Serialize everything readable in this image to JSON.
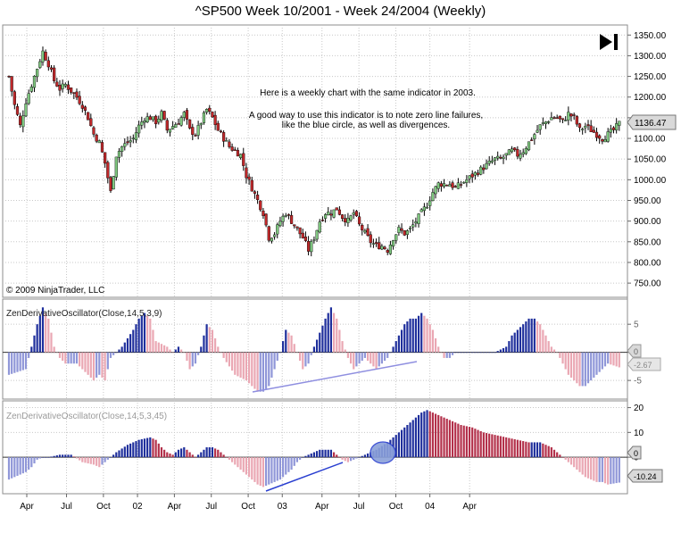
{
  "window": {
    "title": "^SP500  Week 10/2001 - Week 24/2004 (Weekly)"
  },
  "copyright": "© 2009 NinjaTrader, LLC",
  "annotation": {
    "line1": "Here is a weekly chart with the same indicator in 2003.",
    "line2": "A good way to use this indicator is to note zero line failures,",
    "line3": "like the blue circle, as well as divergences."
  },
  "colors": {
    "up_candle": "#7fc77f",
    "down_candle": "#c0282a",
    "wick": "#000000",
    "pos_strong": "#1f2f9c",
    "pos_weak": "#8f96d8",
    "neg_strong": "#b3304a",
    "neg_weak": "#eaa7b3",
    "circle_fill": "#8aa0d9",
    "trend_line": "#2a3fd0",
    "grid": "#c8c8c8"
  },
  "chart_data": [
    {
      "type": "candlestick",
      "panel": "price",
      "ylim": [
        720,
        1370
      ],
      "y_ticks": [
        "1350.00",
        "1300.00",
        "1250.00",
        "1200.00",
        "1150.00",
        "1100.00",
        "1050.00",
        "1000.00",
        "950.00",
        "900.00",
        "850.00",
        "800.00",
        "750.00"
      ],
      "last_value_label": "1136.47",
      "last_value": 1136.47,
      "close_path": [
        [
          0,
          1250
        ],
        [
          2,
          1180
        ],
        [
          4,
          1130
        ],
        [
          6,
          1190
        ],
        [
          8,
          1230
        ],
        [
          10,
          1270
        ],
        [
          12,
          1310
        ],
        [
          14,
          1280
        ],
        [
          16,
          1240
        ],
        [
          18,
          1220
        ],
        [
          20,
          1230
        ],
        [
          22,
          1215
        ],
        [
          24,
          1200
        ],
        [
          26,
          1180
        ],
        [
          28,
          1150
        ],
        [
          30,
          1110
        ],
        [
          32,
          1090
        ],
        [
          34,
          1040
        ],
        [
          36,
          970
        ],
        [
          38,
          1060
        ],
        [
          40,
          1080
        ],
        [
          42,
          1090
        ],
        [
          44,
          1100
        ],
        [
          46,
          1130
        ],
        [
          48,
          1150
        ],
        [
          50,
          1150
        ],
        [
          52,
          1140
        ],
        [
          54,
          1160
        ],
        [
          56,
          1120
        ],
        [
          58,
          1130
        ],
        [
          60,
          1140
        ],
        [
          62,
          1160
        ],
        [
          64,
          1120
        ],
        [
          66,
          1110
        ],
        [
          68,
          1140
        ],
        [
          70,
          1170
        ],
        [
          72,
          1150
        ],
        [
          74,
          1120
        ],
        [
          76,
          1100
        ],
        [
          78,
          1080
        ],
        [
          80,
          1070
        ],
        [
          82,
          1060
        ],
        [
          84,
          1010
        ],
        [
          86,
          980
        ],
        [
          88,
          950
        ],
        [
          90,
          920
        ],
        [
          92,
          860
        ],
        [
          94,
          870
        ],
        [
          96,
          900
        ],
        [
          98,
          920
        ],
        [
          100,
          900
        ],
        [
          102,
          880
        ],
        [
          104,
          860
        ],
        [
          106,
          830
        ],
        [
          108,
          860
        ],
        [
          110,
          900
        ],
        [
          112,
          920
        ],
        [
          114,
          920
        ],
        [
          116,
          930
        ],
        [
          118,
          910
        ],
        [
          120,
          900
        ],
        [
          122,
          920
        ],
        [
          124,
          890
        ],
        [
          126,
          870
        ],
        [
          128,
          850
        ],
        [
          130,
          840
        ],
        [
          132,
          840
        ],
        [
          134,
          830
        ],
        [
          136,
          860
        ],
        [
          138,
          880
        ],
        [
          140,
          870
        ],
        [
          142,
          880
        ],
        [
          144,
          900
        ],
        [
          146,
          920
        ],
        [
          148,
          940
        ],
        [
          150,
          970
        ],
        [
          152,
          990
        ],
        [
          154,
          990
        ],
        [
          156,
          990
        ],
        [
          158,
          980
        ],
        [
          160,
          990
        ],
        [
          162,
          1000
        ],
        [
          164,
          1010
        ],
        [
          166,
          1020
        ],
        [
          168,
          1030
        ],
        [
          170,
          1040
        ],
        [
          172,
          1050
        ],
        [
          174,
          1050
        ],
        [
          176,
          1060
        ],
        [
          178,
          1070
        ],
        [
          180,
          1060
        ],
        [
          182,
          1070
        ],
        [
          184,
          1090
        ],
        [
          186,
          1110
        ],
        [
          188,
          1130
        ],
        [
          190,
          1140
        ],
        [
          192,
          1150
        ],
        [
          194,
          1150
        ],
        [
          196,
          1140
        ],
        [
          198,
          1160
        ],
        [
          200,
          1150
        ],
        [
          202,
          1120
        ],
        [
          204,
          1130
        ],
        [
          206,
          1120
        ],
        [
          208,
          1110
        ],
        [
          210,
          1100
        ],
        [
          212,
          1110
        ],
        [
          214,
          1120
        ],
        [
          216,
          1136
        ]
      ]
    },
    {
      "type": "bar",
      "panel": "oscillator_1",
      "title": "ZenDerivativeOscillator(Close,14,5,3,9)",
      "ylim": [
        -8,
        9
      ],
      "y_ticks": [
        "5",
        "0",
        "-5"
      ],
      "zero_label": "0",
      "last_value_label": "-2.67",
      "last_value": -2.67,
      "series_path": [
        [
          0,
          -4
        ],
        [
          6,
          -3
        ],
        [
          8,
          1
        ],
        [
          10,
          5
        ],
        [
          12,
          8
        ],
        [
          14,
          6
        ],
        [
          16,
          1
        ],
        [
          18,
          -1
        ],
        [
          20,
          -2
        ],
        [
          24,
          -2
        ],
        [
          28,
          -4
        ],
        [
          30,
          -5
        ],
        [
          32,
          -4
        ],
        [
          34,
          -5
        ],
        [
          36,
          -1
        ],
        [
          38,
          0
        ],
        [
          40,
          1
        ],
        [
          44,
          4
        ],
        [
          46,
          6
        ],
        [
          48,
          7
        ],
        [
          50,
          6
        ],
        [
          52,
          2
        ],
        [
          56,
          1
        ],
        [
          58,
          0
        ],
        [
          60,
          1
        ],
        [
          62,
          0
        ],
        [
          64,
          -3
        ],
        [
          66,
          -2
        ],
        [
          68,
          1
        ],
        [
          70,
          5
        ],
        [
          72,
          4
        ],
        [
          74,
          1
        ],
        [
          76,
          -1
        ],
        [
          80,
          -4
        ],
        [
          84,
          -5
        ],
        [
          86,
          -6
        ],
        [
          88,
          -7
        ],
        [
          90,
          -7
        ],
        [
          92,
          -6
        ],
        [
          94,
          -3
        ],
        [
          96,
          0
        ],
        [
          98,
          4
        ],
        [
          100,
          3
        ],
        [
          102,
          0
        ],
        [
          104,
          -3
        ],
        [
          106,
          -2
        ],
        [
          108,
          1
        ],
        [
          112,
          6
        ],
        [
          114,
          8
        ],
        [
          116,
          6
        ],
        [
          118,
          2
        ],
        [
          120,
          -1
        ],
        [
          122,
          -3
        ],
        [
          124,
          -2
        ],
        [
          126,
          -1
        ],
        [
          128,
          -2
        ],
        [
          130,
          -3
        ],
        [
          132,
          -2
        ],
        [
          134,
          -1
        ],
        [
          136,
          1
        ],
        [
          138,
          3
        ],
        [
          140,
          5
        ],
        [
          142,
          6
        ],
        [
          144,
          6
        ],
        [
          146,
          7
        ],
        [
          148,
          6
        ],
        [
          150,
          4
        ],
        [
          152,
          1
        ],
        [
          154,
          -1
        ],
        [
          156,
          -1
        ],
        [
          158,
          0
        ],
        [
          160,
          0
        ],
        [
          164,
          0
        ],
        [
          168,
          0
        ],
        [
          172,
          0
        ],
        [
          176,
          1
        ],
        [
          178,
          3
        ],
        [
          180,
          4
        ],
        [
          182,
          5
        ],
        [
          184,
          6
        ],
        [
          186,
          6
        ],
        [
          188,
          5
        ],
        [
          190,
          3
        ],
        [
          192,
          1
        ],
        [
          194,
          0
        ],
        [
          196,
          -2
        ],
        [
          198,
          -4
        ],
        [
          200,
          -5
        ],
        [
          202,
          -6
        ],
        [
          204,
          -6
        ],
        [
          206,
          -5
        ],
        [
          208,
          -4
        ],
        [
          210,
          -3
        ],
        [
          212,
          -2
        ],
        [
          216,
          -2.67
        ]
      ]
    },
    {
      "type": "bar",
      "panel": "oscillator_2",
      "title": "ZenDerivativeOscillator(Close,14,5,3,45)",
      "ylim": [
        -14,
        22
      ],
      "y_ticks": [
        "20",
        "10",
        "0"
      ],
      "zero_label": "0",
      "last_value_label": "-10.24",
      "last_value": -10.24,
      "series_path": [
        [
          0,
          -9
        ],
        [
          4,
          -7
        ],
        [
          6,
          -6
        ],
        [
          8,
          -4
        ],
        [
          10,
          -1
        ],
        [
          12,
          0
        ],
        [
          14,
          0
        ],
        [
          18,
          1
        ],
        [
          22,
          1
        ],
        [
          26,
          -2
        ],
        [
          30,
          -3
        ],
        [
          32,
          -4
        ],
        [
          34,
          -2
        ],
        [
          36,
          0
        ],
        [
          38,
          2
        ],
        [
          42,
          5
        ],
        [
          46,
          7
        ],
        [
          50,
          8
        ],
        [
          52,
          7
        ],
        [
          54,
          4
        ],
        [
          56,
          2
        ],
        [
          58,
          1
        ],
        [
          60,
          3
        ],
        [
          62,
          4
        ],
        [
          64,
          2
        ],
        [
          66,
          0
        ],
        [
          68,
          2
        ],
        [
          70,
          4
        ],
        [
          72,
          4
        ],
        [
          74,
          3
        ],
        [
          76,
          1
        ],
        [
          78,
          -1
        ],
        [
          80,
          -3
        ],
        [
          82,
          -5
        ],
        [
          84,
          -7
        ],
        [
          86,
          -9
        ],
        [
          88,
          -11
        ],
        [
          90,
          -12
        ],
        [
          92,
          -11
        ],
        [
          94,
          -10
        ],
        [
          96,
          -9
        ],
        [
          98,
          -7
        ],
        [
          100,
          -5
        ],
        [
          102,
          -2
        ],
        [
          104,
          0
        ],
        [
          106,
          1
        ],
        [
          108,
          2
        ],
        [
          110,
          3
        ],
        [
          114,
          3
        ],
        [
          116,
          1
        ],
        [
          118,
          -1
        ],
        [
          120,
          -2
        ],
        [
          122,
          -1
        ],
        [
          124,
          0
        ],
        [
          126,
          1
        ],
        [
          130,
          3
        ],
        [
          134,
          6
        ],
        [
          138,
          10
        ],
        [
          142,
          14
        ],
        [
          144,
          16
        ],
        [
          146,
          18
        ],
        [
          148,
          19
        ],
        [
          150,
          18
        ],
        [
          152,
          17
        ],
        [
          154,
          16
        ],
        [
          156,
          15
        ],
        [
          160,
          13
        ],
        [
          164,
          12
        ],
        [
          168,
          10
        ],
        [
          172,
          9
        ],
        [
          176,
          8
        ],
        [
          180,
          7
        ],
        [
          184,
          6
        ],
        [
          188,
          6
        ],
        [
          190,
          5
        ],
        [
          192,
          4
        ],
        [
          194,
          2
        ],
        [
          196,
          0
        ],
        [
          198,
          -2
        ],
        [
          200,
          -4
        ],
        [
          202,
          -6
        ],
        [
          204,
          -8
        ],
        [
          206,
          -9
        ],
        [
          208,
          -10
        ],
        [
          210,
          -10
        ],
        [
          212,
          -11
        ],
        [
          216,
          -10.24
        ]
      ]
    }
  ],
  "x_axis": {
    "labels": [
      "Apr",
      "Jul",
      "Oct",
      "02",
      "Apr",
      "Jul",
      "Oct",
      "03",
      "Apr",
      "Jul",
      "Oct",
      "04",
      "Apr"
    ],
    "positions": [
      0,
      14,
      27,
      39,
      52,
      65,
      78,
      90,
      104,
      117,
      130,
      142,
      156
    ]
  }
}
